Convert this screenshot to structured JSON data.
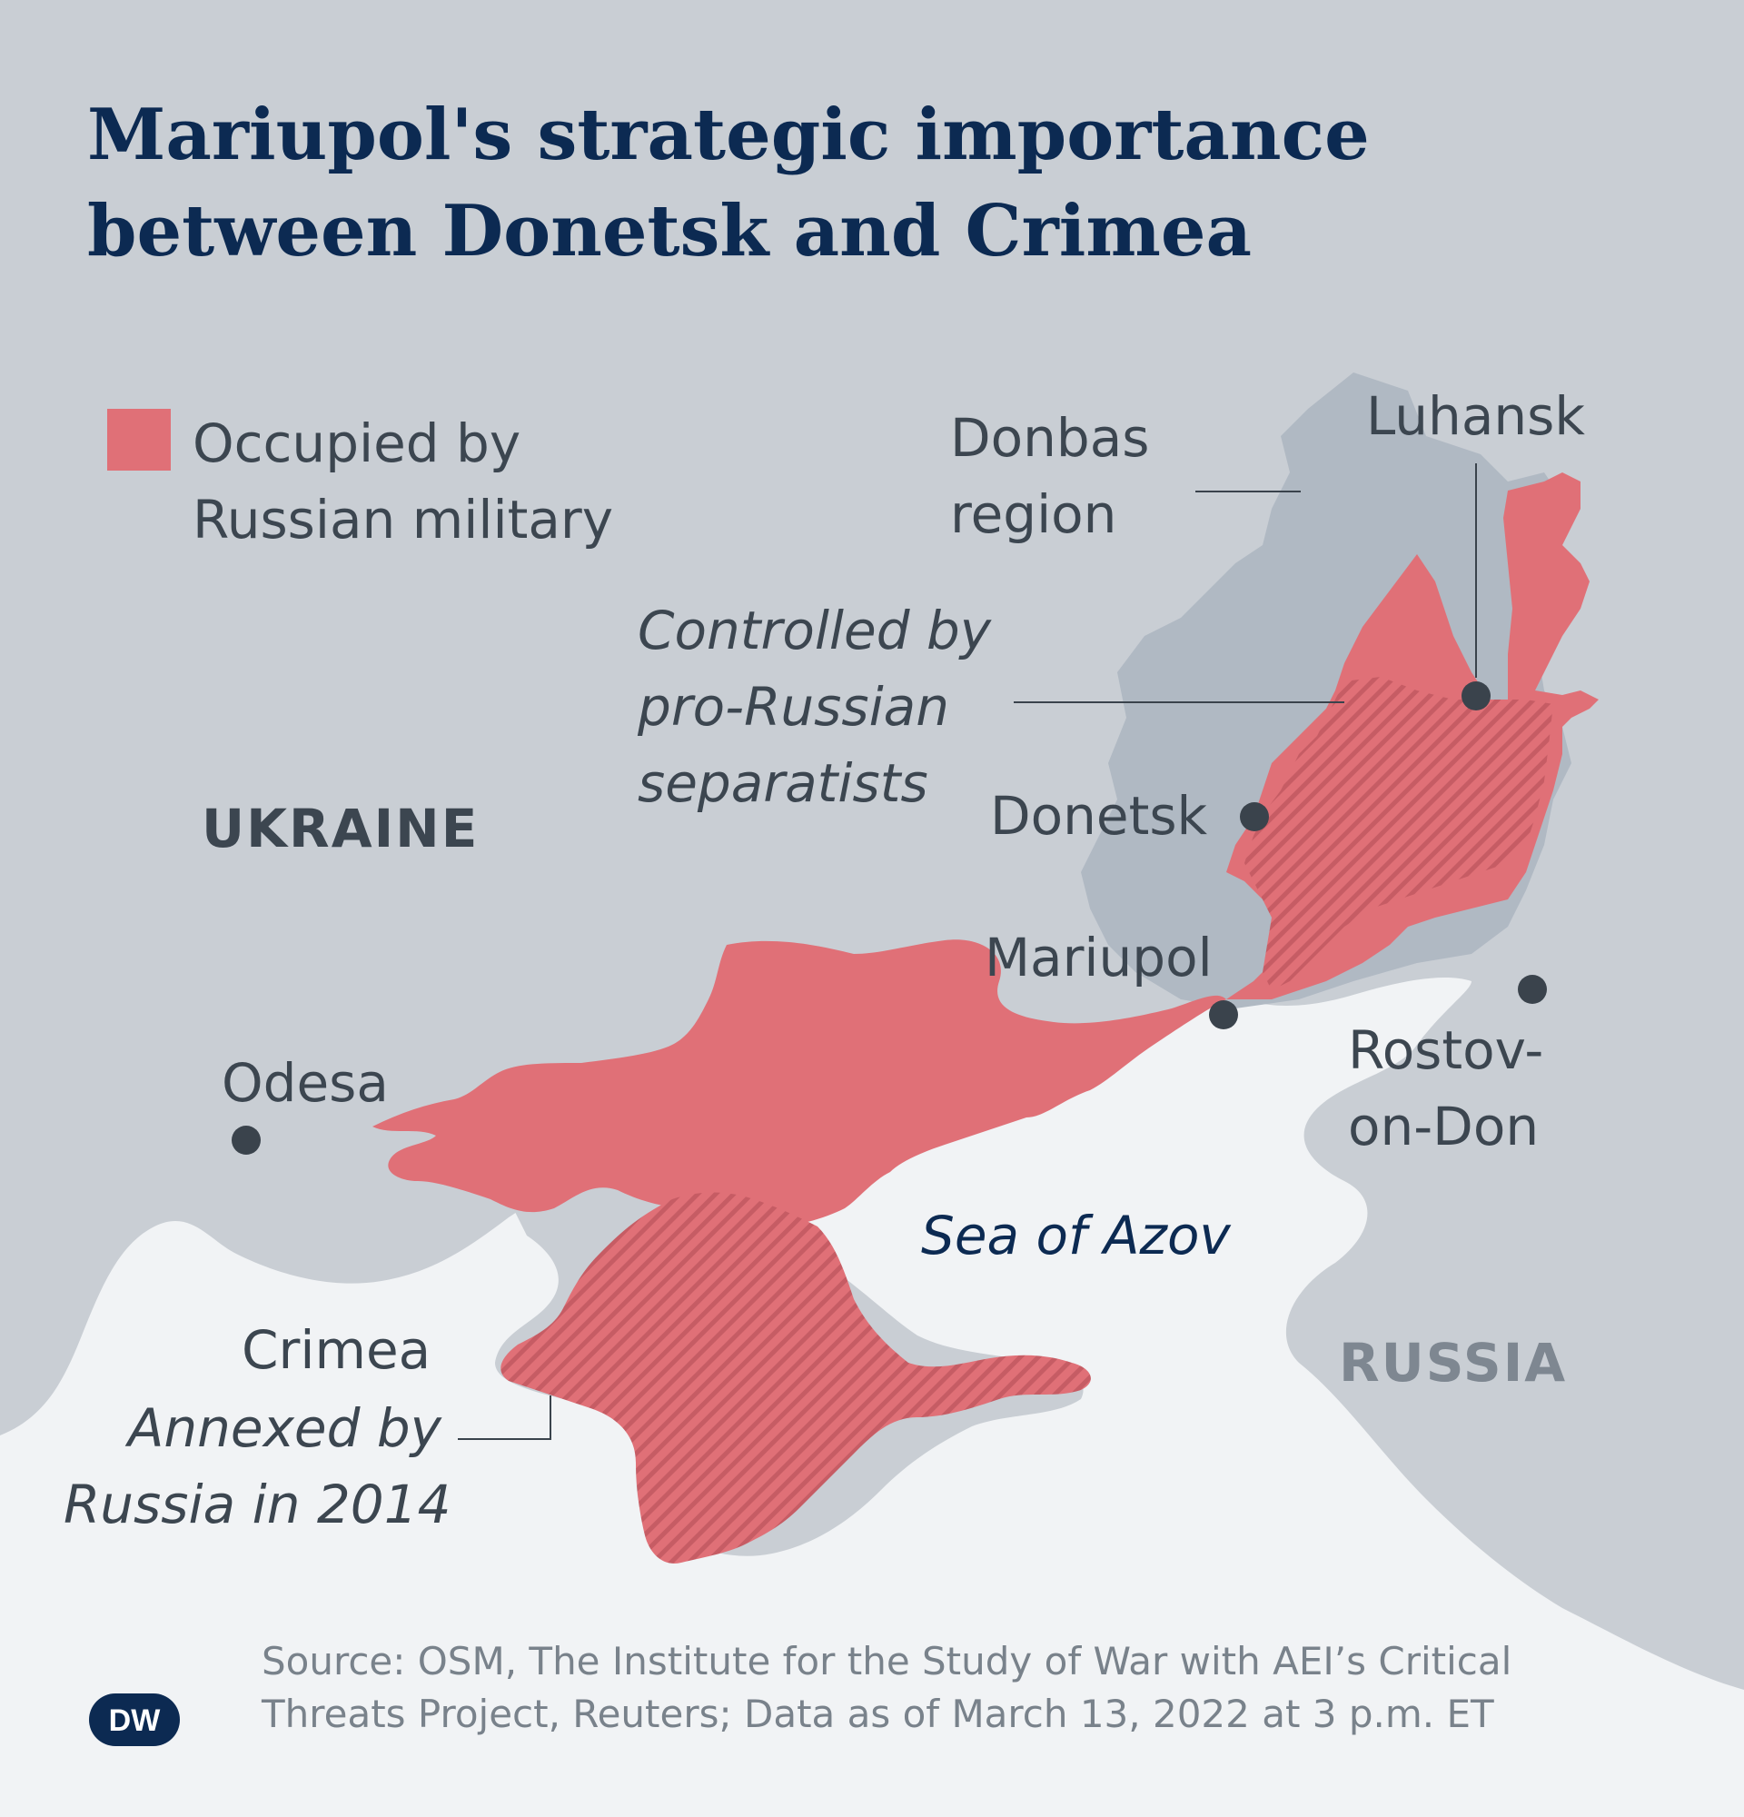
{
  "title": {
    "line1": "Mariupol's strategic importance",
    "line2": "between Donetsk and Crimea"
  },
  "legend": {
    "line1": "Occupied by",
    "line2": "Russian military",
    "color": "#e07077"
  },
  "annotations": {
    "donbas": {
      "line1": "Donbas",
      "line2": "region"
    },
    "separatists": {
      "line1": "Controlled by",
      "line2": "pro-Russian",
      "line3": "separatists"
    },
    "crimea_name": "Crimea",
    "crimea_note": {
      "line1": "Annexed by",
      "line2": "Russia in 2014"
    }
  },
  "countries": {
    "ukraine": "UKRAINE",
    "russia": "RUSSIA"
  },
  "cities": {
    "luhansk": "Luhansk",
    "donetsk": "Donetsk",
    "mariupol": "Mariupol",
    "odesa": "Odesa",
    "rostov": {
      "line1": "Rostov-",
      "line2": "on-Don"
    }
  },
  "sea": "Sea of Azov",
  "source": {
    "line1": "Source: OSM, The Institute for the Study of War with AEI’s Critical",
    "line2": "Threats Project, Reuters; Data as of March 13, 2022 at 3 p.m. ET"
  },
  "logo": "DW",
  "colors": {
    "land": "#c9ced4",
    "sea": "#f1f3f5",
    "donbas": "#b0b9c3",
    "occupied": "#e07077",
    "hatch": "#c85a62",
    "title": "#0c2a52",
    "text": "#3c4650",
    "city_marker": "#3a434c"
  }
}
